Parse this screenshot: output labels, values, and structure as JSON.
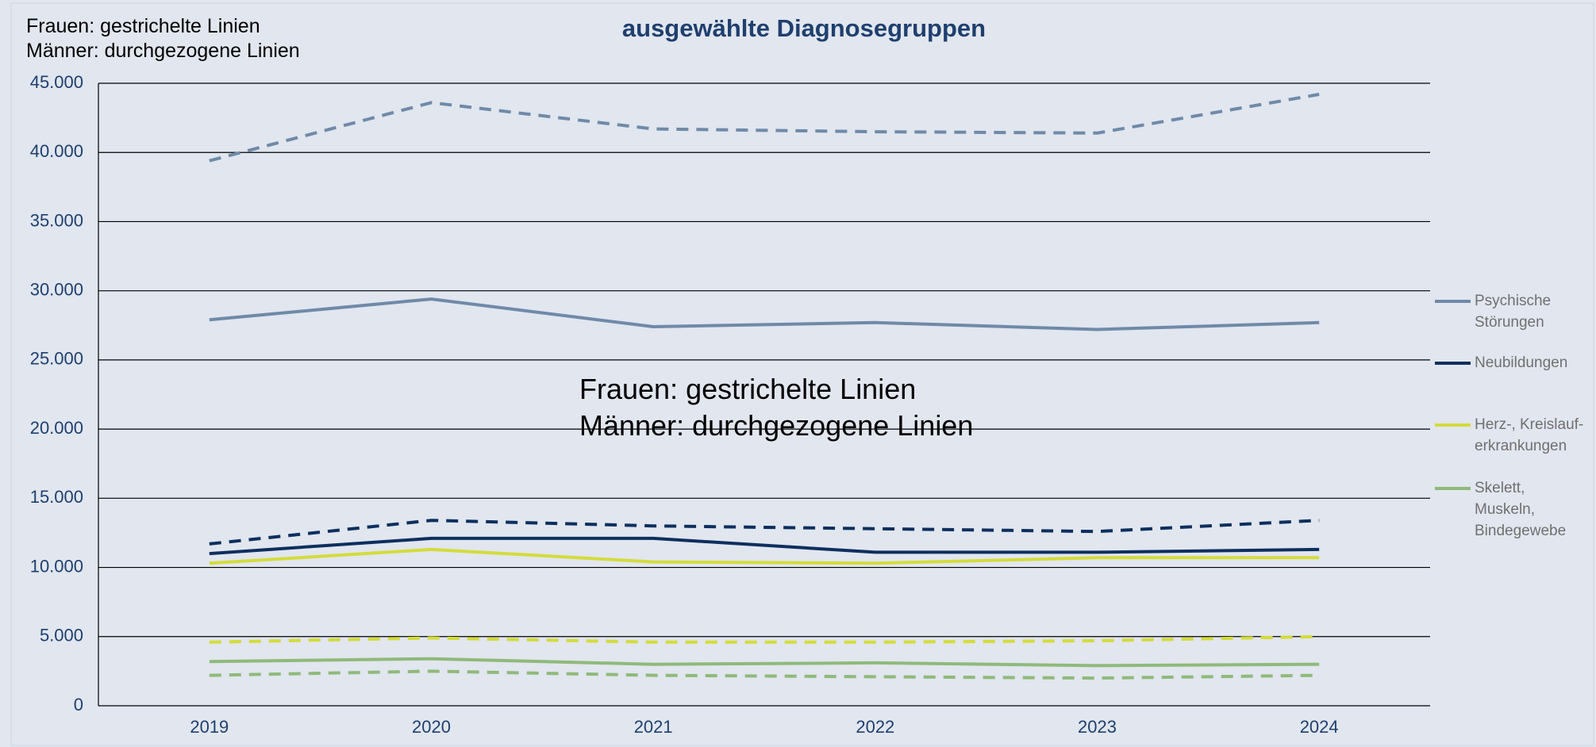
{
  "chart_data": {
    "type": "line",
    "title": "ausgewählte Diagnosegruppen",
    "note": "Frauen: gestrichelte Linien\nMänner: durchgezogene Linien",
    "annotation": "Frauen: gestrichelte Linien\nMänner: durchgezogene Linien",
    "categories": [
      "2019",
      "2020",
      "2021",
      "2022",
      "2023",
      "2024"
    ],
    "series": [
      {
        "name": "Psychische Störungen",
        "color": "#6f8aa8",
        "values": [
          27900,
          29400,
          27400,
          27700,
          27200,
          27700
        ],
        "values_dashed": [
          39400,
          43600,
          41700,
          41500,
          41400,
          44200
        ]
      },
      {
        "name": "Neubildungen",
        "color": "#0d2f5e",
        "values": [
          11000,
          12100,
          12100,
          11100,
          11100,
          11300
        ],
        "values_dashed": [
          11700,
          13400,
          13000,
          12800,
          12600,
          13400
        ]
      },
      {
        "name": "Herz-, Kreislauf-erkrankungen",
        "color": "#d4dc3a",
        "values": [
          10300,
          11300,
          10400,
          10300,
          10700,
          10700
        ],
        "values_dashed": [
          4600,
          4900,
          4600,
          4600,
          4700,
          5000
        ]
      },
      {
        "name": "Skelett, Muskeln, Bindegewebe",
        "color": "#8fba7a",
        "values": [
          3200,
          3400,
          3000,
          3100,
          2900,
          3000
        ],
        "values_dashed": [
          2200,
          2500,
          2200,
          2100,
          2000,
          2200
        ]
      }
    ],
    "ylim": [
      0,
      45000
    ],
    "yticks": [
      0,
      {
        "value": 5000,
        "label": "5.000"
      },
      {
        "value": 10000,
        "label": "10.000"
      },
      {
        "value": 15000,
        "label": "15.000"
      },
      {
        "value": 20000,
        "label": "20.000"
      },
      {
        "value": 25000,
        "label": "25.000"
      },
      {
        "value": 30000,
        "label": "30.000"
      },
      {
        "value": 35000,
        "label": "35.000"
      },
      {
        "value": 40000,
        "label": "40.000"
      },
      {
        "value": 45000,
        "label": "45.000"
      }
    ],
    "grid": true,
    "legend": "right"
  }
}
